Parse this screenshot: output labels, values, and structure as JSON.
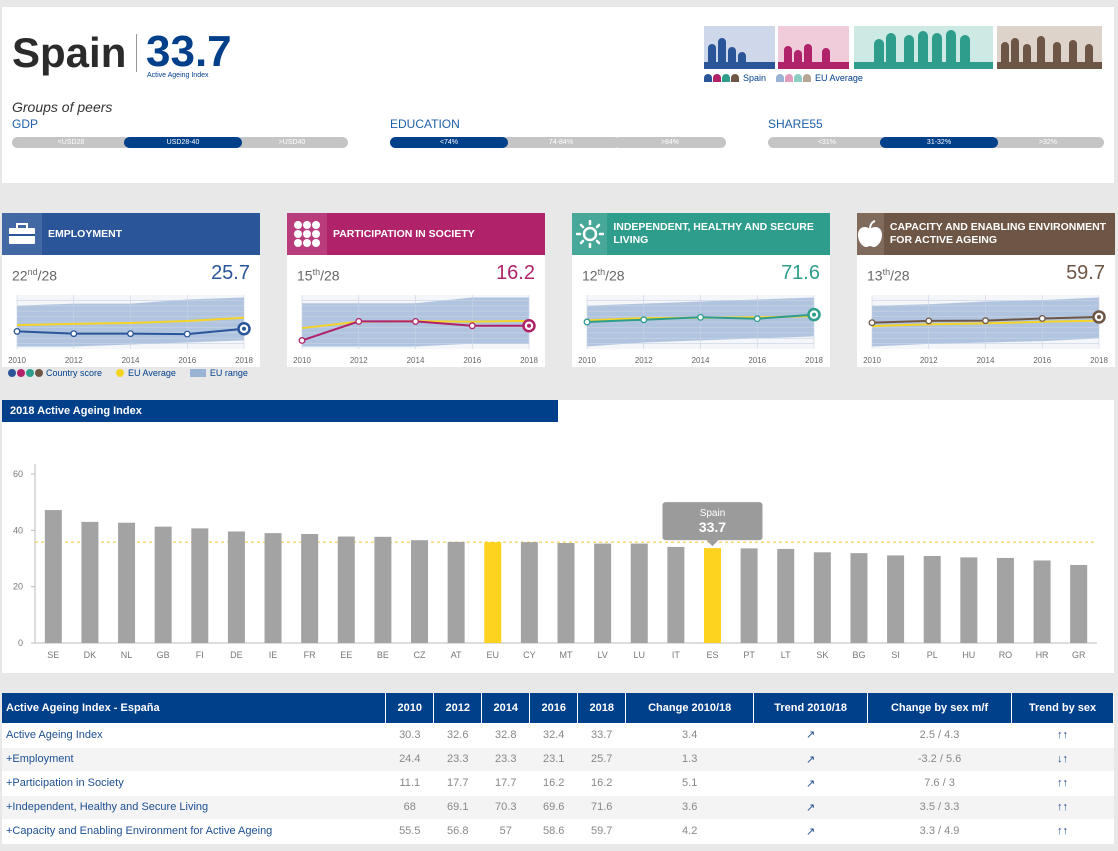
{
  "header": {
    "country": "Spain",
    "score": "33.7",
    "score_label": "Active Ageing Index",
    "peers_title": "Groups of peers",
    "legend_spain": "Spain",
    "legend_eu": "EU Average"
  },
  "peer_groups": [
    {
      "label": "GDP",
      "segments": [
        "<USD28",
        "USD28-40",
        ">USD40"
      ],
      "active": 1
    },
    {
      "label": "EDUCATION",
      "segments": [
        "<74%",
        "74-84%",
        ">84%"
      ],
      "active": 0
    },
    {
      "label": "SHARE55",
      "segments": [
        "<31%",
        "31-32%",
        ">32%"
      ],
      "active": 1
    }
  ],
  "colors": {
    "employment": "#2a5599",
    "participation": "#b0236a",
    "independent": "#2e9d8c",
    "capacity": "#6e5646",
    "eu_yellow": "#f5d327",
    "navy": "#003f8a",
    "range": "#9ab3d5"
  },
  "domains": [
    {
      "key": "employment",
      "title": "EMPLOYMENT",
      "icon": "briefcase-icon",
      "rank": "22",
      "suffix": "nd",
      "of": "/28",
      "score": "25.7",
      "country": [
        24.4,
        23.3,
        23.3,
        23.1,
        25.7
      ],
      "eu": [
        27.5,
        28.1,
        28.5,
        29.5,
        31.1
      ],
      "range_hi": [
        37,
        38,
        38,
        40,
        41
      ],
      "range_lo": [
        17,
        17,
        18,
        19,
        20
      ]
    },
    {
      "key": "participation",
      "title": "PARTICIPATION IN SOCIETY",
      "icon": "dots-icon",
      "rank": "15",
      "suffix": "th",
      "of": "/28",
      "score": "16.2",
      "country": [
        11.1,
        17.7,
        17.7,
        16.2,
        16.2
      ],
      "eu": [
        15.4,
        17.6,
        17.8,
        17.6,
        17.9
      ],
      "range_hi": [
        24,
        24,
        24,
        26,
        26
      ],
      "range_lo": [
        9,
        9,
        9,
        10,
        10
      ]
    },
    {
      "key": "independent",
      "title": "INDEPENDENT, HEALTHY AND SECURE LIVING",
      "icon": "sun-icon",
      "rank": "12",
      "suffix": "th",
      "of": "/28",
      "score": "71.6",
      "country": [
        68.0,
        69.1,
        70.3,
        69.6,
        71.6
      ],
      "eu": [
        68.8,
        69.9,
        70.1,
        70.3,
        70.9
      ],
      "range_hi": [
        76,
        77,
        78,
        79,
        80
      ],
      "range_lo": [
        56,
        58,
        59,
        60,
        61
      ]
    },
    {
      "key": "capacity",
      "title": "CAPACITY AND ENABLING ENVIRONMENT FOR ACTIVE AGEING",
      "icon": "apple-icon",
      "rank": "13",
      "suffix": "th",
      "of": "/28",
      "score": "59.7",
      "country": [
        55.5,
        56.8,
        57.0,
        58.6,
        59.7
      ],
      "eu": [
        53.0,
        54.3,
        55.0,
        56.2,
        57.0
      ],
      "range_hi": [
        68,
        69,
        71,
        72,
        74
      ],
      "range_lo": [
        38,
        40,
        41,
        42,
        44
      ]
    }
  ],
  "trend_years": [
    "2010",
    "2012",
    "2014",
    "2016",
    "2018"
  ],
  "series_legend": {
    "country": "Country score",
    "eu": "EU Average",
    "range": "EU range"
  },
  "chart_data": {
    "type": "bar",
    "title": "2018 Active Ageing Index",
    "categories": [
      "SE",
      "DK",
      "NL",
      "GB",
      "FI",
      "DE",
      "IE",
      "FR",
      "EE",
      "BE",
      "CZ",
      "AT",
      "EU",
      "CY",
      "MT",
      "LV",
      "LU",
      "IT",
      "ES",
      "PT",
      "LT",
      "SK",
      "BG",
      "SI",
      "PL",
      "HU",
      "RO",
      "HR",
      "GR"
    ],
    "values": [
      47.2,
      43.0,
      42.7,
      41.3,
      40.7,
      39.6,
      39.0,
      38.7,
      37.8,
      37.7,
      36.5,
      35.9,
      35.8,
      35.8,
      35.5,
      35.3,
      35.3,
      34.1,
      33.7,
      33.6,
      33.4,
      32.2,
      31.9,
      31.1,
      30.9,
      30.4,
      30.2,
      29.3,
      27.7
    ],
    "highlight": [
      "EU",
      "ES"
    ],
    "eu_average_line": 35.8,
    "ylim": [
      0,
      60
    ],
    "yticks": [
      "0",
      "20",
      "40",
      "60"
    ],
    "tooltip": {
      "country": "Spain",
      "value": "33.7"
    },
    "bar_color": "#a3a3a3",
    "highlight_color": "#fdd31f"
  },
  "table": {
    "headers": [
      "Active Ageing Index - España",
      "2010",
      "2012",
      "2014",
      "2016",
      "2018",
      "Change 2010/18",
      "Trend 2010/18",
      "Change by sex m/f",
      "Trend by sex"
    ],
    "rows": [
      [
        "Active Ageing Index",
        "30.3",
        "32.6",
        "32.8",
        "32.4",
        "33.7",
        "3.4",
        "↗",
        "2.5 / 4.3",
        "↑↑"
      ],
      [
        "+Employment",
        "24.4",
        "23.3",
        "23.3",
        "23.1",
        "25.7",
        "1.3",
        "↗",
        "-3.2 / 5.6",
        "↓↑"
      ],
      [
        "+Participation in Society",
        "11.1",
        "17.7",
        "17.7",
        "16.2",
        "16.2",
        "5.1",
        "↗",
        "7.6 / 3",
        "↑↑"
      ],
      [
        "+Independent, Healthy and Secure Living",
        "68",
        "69.1",
        "70.3",
        "69.6",
        "71.6",
        "3.6",
        "↗",
        "3.5 / 3.3",
        "↑↑"
      ],
      [
        "+Capacity and Enabling Environment for Active Ageing",
        "55.5",
        "56.8",
        "57",
        "58.6",
        "59.7",
        "4.2",
        "↗",
        "3.3 / 4.9",
        "↑↑"
      ]
    ]
  }
}
